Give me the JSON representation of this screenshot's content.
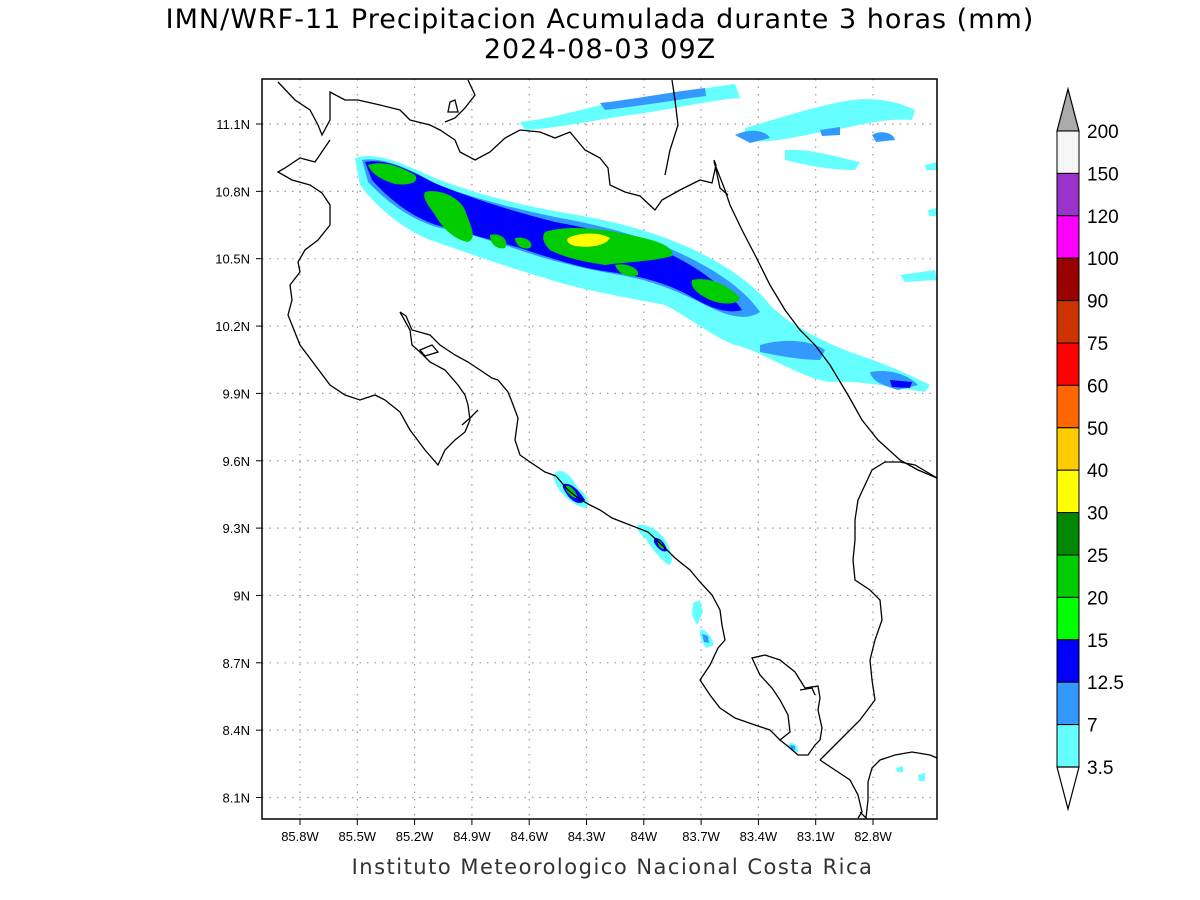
{
  "title": {
    "line1": "IMN/WRF-11 Precipitacion Acumulada durante 3 horas (mm)",
    "line2": "2024-08-03 09Z"
  },
  "footer": "Instituto Meteorologico Nacional Costa Rica",
  "axes": {
    "lon_labels": [
      "85.8W",
      "85.5W",
      "85.2W",
      "84.9W",
      "84.6W",
      "84.3W",
      "84W",
      "83.7W",
      "83.4W",
      "83.1W",
      "82.8W"
    ],
    "lat_labels": [
      "11.1N",
      "10.8N",
      "10.5N",
      "10.2N",
      "9.9N",
      "9.6N",
      "9.3N",
      "9N",
      "8.7N",
      "8.4N",
      "8.1N"
    ],
    "grid": true
  },
  "colorbar": {
    "labels": [
      "3.5",
      "7",
      "12.5",
      "15",
      "20",
      "25",
      "30",
      "40",
      "50",
      "60",
      "75",
      "90",
      "100",
      "120",
      "150",
      "200"
    ],
    "colors": [
      "#66ffff",
      "#3399ff",
      "#0000ff",
      "#00ff00",
      "#00cc00",
      "#008800",
      "#ffff00",
      "#ffcc00",
      "#ff6600",
      "#ff0000",
      "#cc3300",
      "#990000",
      "#ff00ff",
      "#9933cc",
      "#f5f5f5"
    ],
    "top_arrow_color": "#aaaaaa",
    "bottom_arrow_color": "#ffffff"
  }
}
